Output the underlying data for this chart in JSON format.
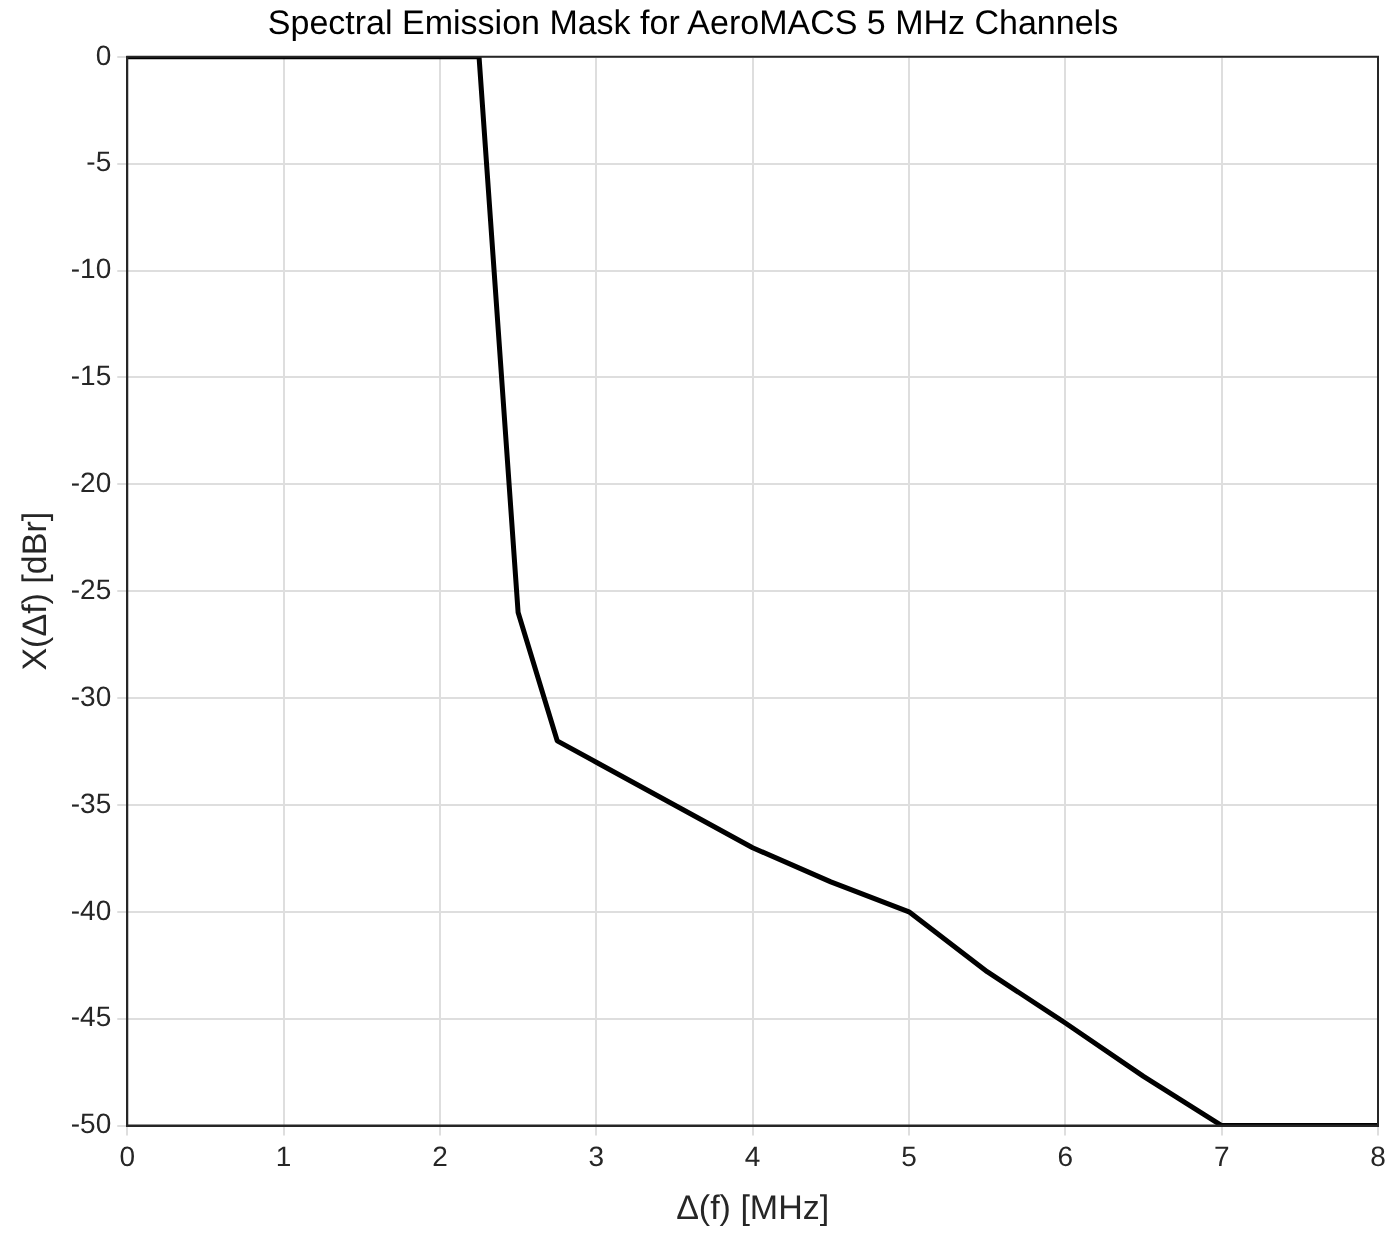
{
  "chart_data": {
    "type": "line",
    "title": "Spectral Emission Mask for AeroMACS 5 MHz Channels",
    "xlabel": "Δ(f) [MHz]",
    "ylabel": "X(Δf) [dBr]",
    "x": [
      0,
      2.25,
      2.5,
      2.75,
      3,
      3.5,
      4,
      4.5,
      5,
      5.5,
      6,
      6.5,
      7,
      8
    ],
    "series": [
      {
        "color": "#000000",
        "values": [
          0,
          0,
          -26,
          -32,
          -33,
          -35,
          -37,
          -38.6,
          -40,
          -42.8,
          -45.2,
          -47.7,
          -50,
          -50
        ]
      }
    ],
    "xlim": [
      0,
      8
    ],
    "xticks": [
      0,
      1,
      2,
      3,
      4,
      5,
      6,
      7,
      8
    ],
    "ylim": [
      -50,
      0
    ],
    "yticks": [
      -50,
      -45,
      -40,
      -35,
      -30,
      -25,
      -20,
      -15,
      -10,
      -5,
      0
    ],
    "grid": true,
    "legend": false,
    "marker": "none",
    "line_style": "solid"
  }
}
